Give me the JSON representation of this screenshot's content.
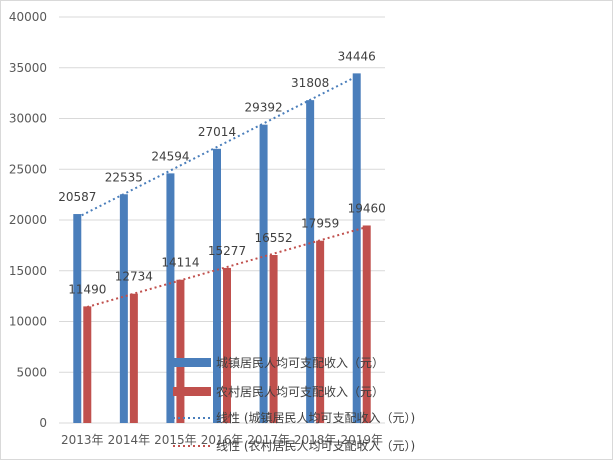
{
  "chart_data": {
    "type": "bar",
    "categories": [
      "2013年",
      "2014年",
      "2015年",
      "2016年",
      "2017年",
      "2018年",
      "2019年"
    ],
    "series": [
      {
        "name": "城镇居民人均可支配收入（元）",
        "values": [
          20587,
          22535,
          24594,
          27014,
          29392,
          31808,
          34446
        ],
        "color": "#4a7ebb"
      },
      {
        "name": "农村居民人均可支配收入（元）",
        "values": [
          11490,
          12734,
          14114,
          15277,
          16552,
          17959,
          19460
        ],
        "color": "#c0504d"
      }
    ],
    "trendlines": [
      {
        "name": "线性 (城镇居民人均可支配收入（元）)",
        "series_index": 0,
        "type": "linear",
        "style": "dotted",
        "color": "#4a7ebb"
      },
      {
        "name": "线性 (农村居民人均可支配收入（元）)",
        "series_index": 1,
        "type": "linear",
        "style": "dotted",
        "color": "#c0504d"
      }
    ],
    "ylim": [
      0,
      40000
    ],
    "yticks": [
      0,
      5000,
      10000,
      15000,
      20000,
      25000,
      30000,
      35000,
      40000
    ],
    "grid": true,
    "legend_position": "bottom-right",
    "data_labels": true
  }
}
